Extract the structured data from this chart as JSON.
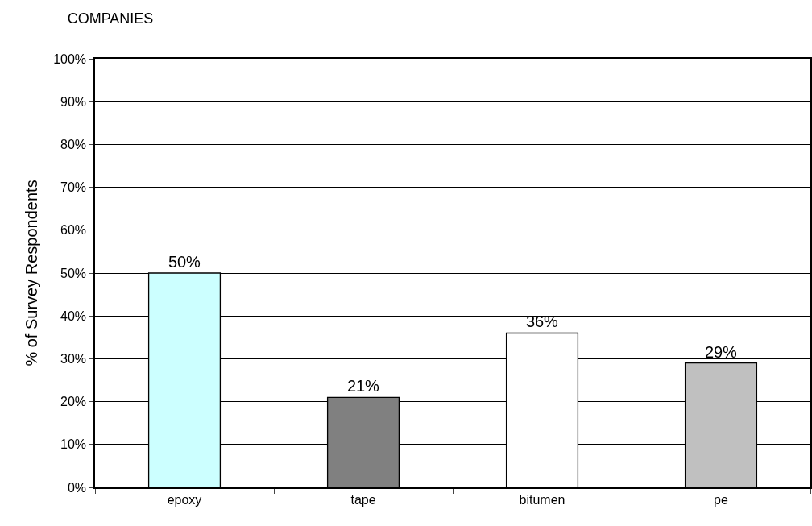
{
  "chart_data": {
    "type": "bar",
    "title": "COMPANIES",
    "ylabel": "% of Survey Respondents",
    "categories": [
      "epoxy",
      "tape",
      "bitumen",
      "pe"
    ],
    "values": [
      50,
      21,
      36,
      29
    ],
    "colors": [
      "#ccffff",
      "#808080",
      "#ffffff",
      "#c0c0c0"
    ],
    "value_labels": [
      "50%",
      "21%",
      "36%",
      "29%"
    ],
    "ylim": [
      0,
      100
    ],
    "yticks": [
      {
        "value": 0,
        "label": "0%"
      },
      {
        "value": 10,
        "label": "10%"
      },
      {
        "value": 20,
        "label": "20%"
      },
      {
        "value": 30,
        "label": "30%"
      },
      {
        "value": 40,
        "label": "40%"
      },
      {
        "value": 50,
        "label": "50%"
      },
      {
        "value": 60,
        "label": "60%"
      },
      {
        "value": 70,
        "label": "70%"
      },
      {
        "value": 80,
        "label": "80%"
      },
      {
        "value": 90,
        "label": "90%"
      },
      {
        "value": 100,
        "label": "100%"
      }
    ],
    "grid": "y"
  }
}
